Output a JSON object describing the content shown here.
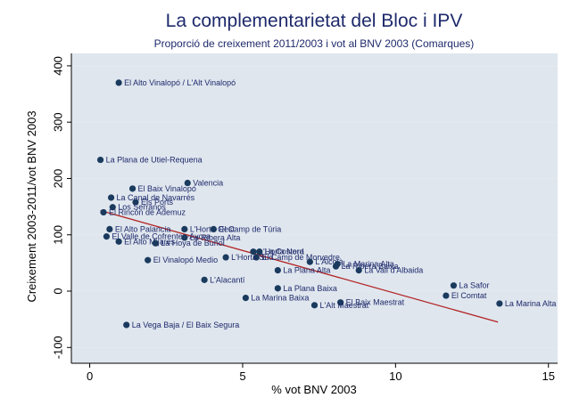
{
  "chart_data": {
    "type": "scatter",
    "title": "La complementarietat del Bloc i IPV",
    "subtitle": "Proporció de creixement 2011/2003 i vot al BNV 2003 (Comarques)",
    "xlabel": "% vot BNV 2003",
    "ylabel": "Creixement 2003-2011/vot BNV 2003",
    "xlim": [
      -0.6,
      15.3
    ],
    "ylim": [
      -128,
      422
    ],
    "xticks": [
      0,
      5,
      10,
      15
    ],
    "yticks": [
      -100,
      0,
      100,
      200,
      300,
      400
    ],
    "grid": true,
    "colors": {
      "background": "#dfe6ee",
      "point": "#1a3a5e",
      "fit_line": "#b22222",
      "title": "#1e2a6b"
    },
    "points": [
      {
        "label": "El Alto Vinalopó / L'Alt Vinalopó",
        "x": 0.95,
        "y": 370
      },
      {
        "label": "La Plana de Utiel-Requena",
        "x": 0.35,
        "y": 233
      },
      {
        "label": "Valencia",
        "x": 3.2,
        "y": 192
      },
      {
        "label": "El Baix Vinalopó",
        "x": 1.4,
        "y": 182
      },
      {
        "label": "La Canal de Navarrés",
        "x": 0.7,
        "y": 166
      },
      {
        "label": "Els Ports",
        "x": 1.5,
        "y": 158
      },
      {
        "label": "Los Serranos",
        "x": 0.75,
        "y": 149
      },
      {
        "label": "El Rincón de Ademuz",
        "x": 0.45,
        "y": 140
      },
      {
        "label": "El Alto Palancia",
        "x": 0.65,
        "y": 110
      },
      {
        "label": "L'Horta Oest",
        "x": 3.1,
        "y": 110
      },
      {
        "label": "El Camp de Túria",
        "x": 4.05,
        "y": 110
      },
      {
        "label": "El Valle de Cofrentes-Ayora",
        "x": 0.55,
        "y": 97
      },
      {
        "label": "La Ribera Alta",
        "x": 3.1,
        "y": 95
      },
      {
        "label": "El Alto Mijares",
        "x": 0.95,
        "y": 88
      },
      {
        "label": "La Hoya de Buñol",
        "x": 2.15,
        "y": 85
      },
      {
        "label": "L'Horta Nord",
        "x": 5.35,
        "y": 70
      },
      {
        "label": "La Costera",
        "x": 5.55,
        "y": 70
      },
      {
        "label": "El Camp de Morvedre",
        "x": 5.45,
        "y": 60
      },
      {
        "label": "L'Horta Sud",
        "x": 4.45,
        "y": 60
      },
      {
        "label": "El Vinalopó Medio",
        "x": 1.9,
        "y": 55
      },
      {
        "label": "L'Alcoià",
        "x": 7.2,
        "y": 52
      },
      {
        "label": "La Marina Alta",
        "x": 8.1,
        "y": 48
      },
      {
        "label": "La Ribera Baixa",
        "x": 8.05,
        "y": 44
      },
      {
        "label": "La Plana Alta",
        "x": 6.15,
        "y": 37
      },
      {
        "label": "La Vall d'Albaida",
        "x": 8.8,
        "y": 37
      },
      {
        "label": "L'Alacantí",
        "x": 3.75,
        "y": 20
      },
      {
        "label": "La Safor",
        "x": 11.9,
        "y": 10
      },
      {
        "label": "La Plana Baixa",
        "x": 6.15,
        "y": 5
      },
      {
        "label": "El Comtat",
        "x": 11.65,
        "y": -8
      },
      {
        "label": "La Marina Baixa",
        "x": 5.1,
        "y": -12
      },
      {
        "label": "El Baix Maestrat",
        "x": 8.2,
        "y": -20
      },
      {
        "label": "L'Alt Maestrat",
        "x": 7.35,
        "y": -25
      },
      {
        "label": "La Marina Alta",
        "x": 13.4,
        "y": -22
      },
      {
        "label": "La Vega Baja / El Baix Segura",
        "x": 1.2,
        "y": -60
      }
    ],
    "fit_line": {
      "x": [
        0.35,
        13.35
      ],
      "y": [
        143,
        -55
      ]
    }
  }
}
